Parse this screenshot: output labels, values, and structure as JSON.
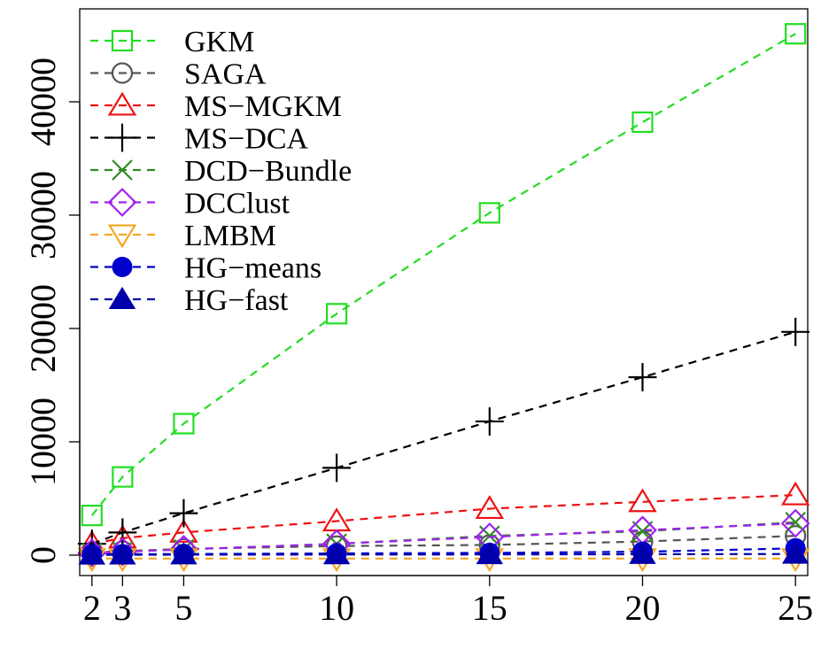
{
  "chart_data": {
    "type": "line",
    "title": "",
    "xlabel": "",
    "ylabel": "",
    "x": [
      2,
      3,
      5,
      10,
      15,
      20,
      25
    ],
    "xticks": [
      2,
      3,
      5,
      10,
      15,
      20,
      25
    ],
    "yticks": [
      0,
      10000,
      20000,
      30000,
      40000
    ],
    "xlim": [
      1.6,
      25.4
    ],
    "ylim": [
      -1800,
      48200
    ],
    "grid": false,
    "legend_position": "top-left",
    "series": [
      {
        "name": "GKM",
        "color": "#22dd22",
        "marker": "open-square",
        "values": [
          3500,
          6900,
          11600,
          21300,
          30200,
          38200,
          46000
        ]
      },
      {
        "name": "SAGA",
        "color": "#555555",
        "marker": "open-circle",
        "values": [
          250,
          350,
          550,
          800,
          900,
          1200,
          1700
        ]
      },
      {
        "name": "MS−MGKM",
        "color": "#ee1111",
        "marker": "open-triangle-up",
        "values": [
          1000,
          1500,
          2000,
          3000,
          4100,
          4700,
          5300
        ]
      },
      {
        "name": "MS−DCA",
        "color": "#000000",
        "marker": "plus",
        "values": [
          1000,
          2000,
          3700,
          7700,
          11800,
          15700,
          19700
        ]
      },
      {
        "name": "DCD−Bundle",
        "color": "#2e8b22",
        "marker": "cross",
        "values": [
          200,
          300,
          500,
          1000,
          1700,
          2100,
          2900
        ]
      },
      {
        "name": "DCClust",
        "color": "#a020f0",
        "marker": "open-diamond",
        "values": [
          200,
          300,
          500,
          1000,
          1600,
          2200,
          2800
        ]
      },
      {
        "name": "LMBM",
        "color": "#f5a623",
        "marker": "open-triangle-down",
        "values": [
          -300,
          -300,
          -300,
          -300,
          -300,
          -300,
          -300
        ]
      },
      {
        "name": "HG−means",
        "color": "#0000cc",
        "marker": "filled-circle",
        "values": [
          60,
          80,
          100,
          150,
          200,
          300,
          600
        ]
      },
      {
        "name": "HG−fast",
        "color": "#0000aa",
        "marker": "filled-triangle-up",
        "values": [
          20,
          30,
          40,
          50,
          60,
          80,
          100
        ]
      }
    ]
  }
}
